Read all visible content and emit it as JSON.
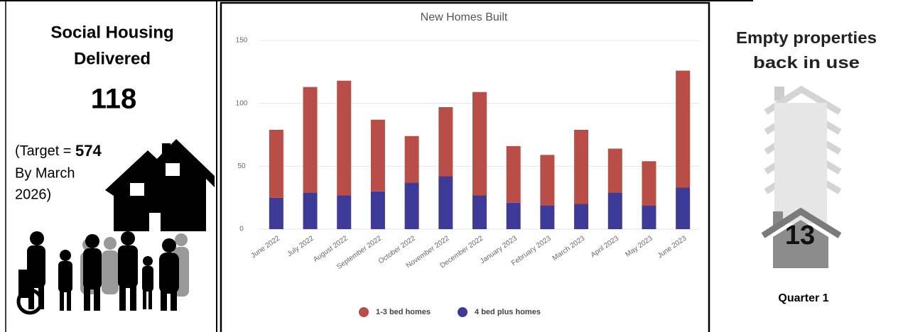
{
  "left_panel": {
    "title": [
      "Social Housing",
      "Delivered"
    ],
    "value": 118,
    "target_prefix": "(Target =",
    "target_value": 574,
    "target_lines": [
      "By March",
      "2026)"
    ]
  },
  "chart_data": {
    "type": "bar",
    "stacked": true,
    "title": "New Homes Built",
    "categories": [
      "June 2022",
      "July 2022",
      "August 2022",
      "September 2022",
      "October 2022",
      "November 2022",
      "December 2022",
      "January 2023",
      "February 2023",
      "March 2023",
      "April 2023",
      "May 2023",
      "June 2023"
    ],
    "series": [
      {
        "name": "1-3 bed homes",
        "color": "#b94e49",
        "values": [
          54,
          84,
          91,
          57,
          37,
          55,
          82,
          45,
          40,
          59,
          35,
          35,
          93
        ]
      },
      {
        "name": "4 bed plus homes",
        "color": "#3d3a98",
        "values": [
          25,
          29,
          27,
          30,
          37,
          42,
          27,
          21,
          19,
          20,
          29,
          19,
          33
        ]
      }
    ],
    "ylim": [
      0,
      150
    ],
    "yticks": [
      0,
      50,
      100,
      150
    ],
    "grid": true,
    "legend": "bottom"
  },
  "right_panel": {
    "title": [
      "Empty properties",
      "back in use"
    ],
    "value": 13,
    "period": "Quarter 1"
  }
}
